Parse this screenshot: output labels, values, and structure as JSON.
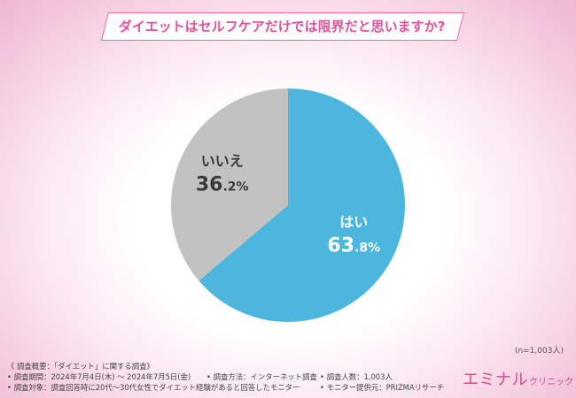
{
  "title": "ダイエットはセルフケアだけでは限界だと思いますか?",
  "chart_data": {
    "type": "pie",
    "slices": [
      {
        "label": "はい",
        "value": 63.8,
        "color": "#4db6dd",
        "text_color": "#ffffff"
      },
      {
        "label": "いいえ",
        "value": 36.2,
        "color": "#c2c2c2",
        "text_color": "#3a3a3a"
      }
    ],
    "start_angle_deg": 0,
    "direction": "clockwise"
  },
  "sample_note": "(n=1,003人)",
  "footer": {
    "header": "《 調査概要：「ダイエット」に関する調査》",
    "period": "• 調査期間：2024年7月4日(木) ～ 2024年7月5日(金)",
    "method": "• 調査方法：インターネット調査",
    "count": "• 調査人数：1,003人",
    "target": "• 調査対象：調査回答時に20代～30代女性でダイエット経験があると回答したモニター",
    "provider": "• モニター提供元：PRIZMAリサーチ"
  },
  "logo": {
    "main": "エミナル",
    "sub": "クリニック"
  }
}
